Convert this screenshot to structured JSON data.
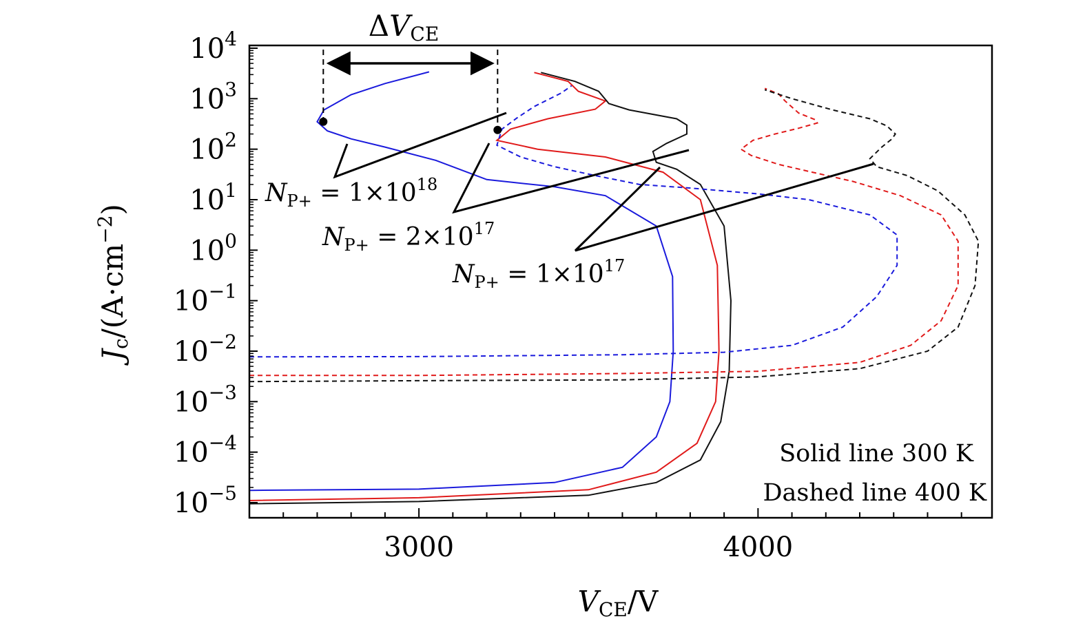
{
  "chart_data": {
    "type": "line",
    "xlabel": "V_CE/V",
    "ylabel": "J_c/(A·cm^−2)",
    "x_scale": "linear",
    "y_scale": "log",
    "xlim": [
      2500,
      4690
    ],
    "ylim": [
      5e-06,
      10000
    ],
    "x_ticks": [
      3000,
      4000
    ],
    "y_tick_exponents": [
      4,
      3,
      2,
      1,
      0,
      -1,
      -2,
      -3,
      -4,
      -5
    ],
    "grid": false,
    "colors": {
      "1e18": "#1a1adc",
      "2e17": "#e01a1a",
      "1e17": "#111111"
    },
    "series": [
      {
        "doping": "1e18",
        "temperature": "300 K",
        "style": "solid",
        "color": "#1a1adc",
        "points": [
          [
            2500,
            1.75e-05
          ],
          [
            3000,
            1.85e-05
          ],
          [
            3400,
            2.5e-05
          ],
          [
            3600,
            5e-05
          ],
          [
            3700,
            0.0002
          ],
          [
            3740,
            0.001
          ],
          [
            3750,
            0.01
          ],
          [
            3748,
            0.3
          ],
          [
            3700,
            3
          ],
          [
            3550,
            12
          ],
          [
            3400,
            18
          ],
          [
            3200,
            25
          ],
          [
            3050,
            60
          ],
          [
            2900,
            110
          ],
          [
            2800,
            160
          ],
          [
            2730,
            230
          ],
          [
            2700,
            350
          ],
          [
            2720,
            600
          ],
          [
            2800,
            1200
          ],
          [
            2900,
            2000
          ],
          [
            3030,
            3400
          ]
        ]
      },
      {
        "doping": "2e17",
        "temperature": "300 K",
        "style": "solid",
        "color": "#e01a1a",
        "points": [
          [
            2500,
            1.1e-05
          ],
          [
            3000,
            1.25e-05
          ],
          [
            3500,
            1.8e-05
          ],
          [
            3700,
            4e-05
          ],
          [
            3820,
            0.00015
          ],
          [
            3875,
            0.001
          ],
          [
            3885,
            0.01
          ],
          [
            3880,
            0.5
          ],
          [
            3830,
            10
          ],
          [
            3720,
            35
          ],
          [
            3550,
            70
          ],
          [
            3350,
            100
          ],
          [
            3230,
            150
          ],
          [
            3270,
            250
          ],
          [
            3380,
            400
          ],
          [
            3520,
            620
          ],
          [
            3550,
            900
          ],
          [
            3470,
            1400
          ],
          [
            3440,
            2200
          ],
          [
            3340,
            3300
          ]
        ]
      },
      {
        "doping": "1e17",
        "temperature": "300 K",
        "style": "solid",
        "color": "#111111",
        "points": [
          [
            2500,
            9.5e-06
          ],
          [
            3000,
            1.05e-05
          ],
          [
            3500,
            1.4e-05
          ],
          [
            3700,
            2.5e-05
          ],
          [
            3830,
            7e-05
          ],
          [
            3890,
            0.0004
          ],
          [
            3915,
            0.004
          ],
          [
            3920,
            0.1
          ],
          [
            3900,
            3
          ],
          [
            3830,
            20
          ],
          [
            3760,
            40
          ],
          [
            3700,
            55
          ],
          [
            3690,
            90
          ],
          [
            3730,
            130
          ],
          [
            3790,
            200
          ],
          [
            3790,
            300
          ],
          [
            3760,
            400
          ],
          [
            3620,
            600
          ],
          [
            3560,
            800
          ],
          [
            3530,
            1400
          ],
          [
            3460,
            2200
          ],
          [
            3360,
            3300
          ]
        ]
      },
      {
        "doping": "1e18",
        "temperature": "400 K",
        "style": "dashed",
        "color": "#1a1adc",
        "points": [
          [
            2500,
            0.0077
          ],
          [
            3000,
            0.0078
          ],
          [
            3600,
            0.0085
          ],
          [
            3900,
            0.0095
          ],
          [
            4100,
            0.013
          ],
          [
            4250,
            0.03
          ],
          [
            4350,
            0.12
          ],
          [
            4410,
            0.5
          ],
          [
            4410,
            2
          ],
          [
            4330,
            5
          ],
          [
            4150,
            10
          ],
          [
            4000,
            13
          ],
          [
            3800,
            17
          ],
          [
            3650,
            20
          ],
          [
            3520,
            30
          ],
          [
            3400,
            45
          ],
          [
            3300,
            70
          ],
          [
            3230,
            120
          ],
          [
            3245,
            250
          ],
          [
            3290,
            420
          ],
          [
            3340,
            700
          ],
          [
            3420,
            1300
          ],
          [
            3450,
            1800
          ]
        ]
      },
      {
        "doping": "2e17",
        "temperature": "400 K",
        "style": "dashed",
        "color": "#e01a1a",
        "points": [
          [
            2500,
            0.0033
          ],
          [
            3000,
            0.0033
          ],
          [
            3600,
            0.0036
          ],
          [
            4000,
            0.004
          ],
          [
            4300,
            0.006
          ],
          [
            4450,
            0.013
          ],
          [
            4540,
            0.04
          ],
          [
            4590,
            0.2
          ],
          [
            4590,
            1.5
          ],
          [
            4540,
            5
          ],
          [
            4420,
            12
          ],
          [
            4280,
            23
          ],
          [
            4160,
            35
          ],
          [
            4060,
            50
          ],
          [
            3980,
            75
          ],
          [
            3950,
            100
          ],
          [
            3985,
            150
          ],
          [
            4050,
            200
          ],
          [
            4120,
            260
          ],
          [
            4175,
            330
          ],
          [
            4170,
            380
          ],
          [
            4120,
            520
          ],
          [
            4080,
            900
          ],
          [
            4060,
            1250
          ],
          [
            4020,
            1600
          ]
        ]
      },
      {
        "doping": "1e17",
        "temperature": "400 K",
        "style": "dashed",
        "color": "#111111",
        "points": [
          [
            2500,
            0.0025
          ],
          [
            3000,
            0.0026
          ],
          [
            3600,
            0.0027
          ],
          [
            4000,
            0.0031
          ],
          [
            4300,
            0.0045
          ],
          [
            4500,
            0.01
          ],
          [
            4590,
            0.03
          ],
          [
            4640,
            0.2
          ],
          [
            4650,
            1.5
          ],
          [
            4610,
            5
          ],
          [
            4530,
            15
          ],
          [
            4440,
            30
          ],
          [
            4350,
            45
          ],
          [
            4330,
            65
          ],
          [
            4365,
            110
          ],
          [
            4395,
            160
          ],
          [
            4405,
            200
          ],
          [
            4380,
            290
          ],
          [
            4330,
            400
          ],
          [
            4220,
            600
          ],
          [
            4100,
            1000
          ],
          [
            4020,
            1500
          ]
        ]
      }
    ],
    "annotations": [
      {
        "id": "dvce",
        "text": "ΔV_CE",
        "from_x": 2718,
        "to_x": 3232,
        "y": 3000
      },
      {
        "id": "np1e18",
        "text": "N_P+ = 1×10^18"
      },
      {
        "id": "np2e17",
        "text": "N_P+ = 2×10^17"
      },
      {
        "id": "np1e17",
        "text": "N_P+ = 1×10^17"
      }
    ],
    "markers": [
      [
        2718,
        350
      ],
      [
        3232,
        240
      ]
    ],
    "legend_notes": [
      "Solid line 300 K",
      "Dashed line 400 K"
    ]
  }
}
